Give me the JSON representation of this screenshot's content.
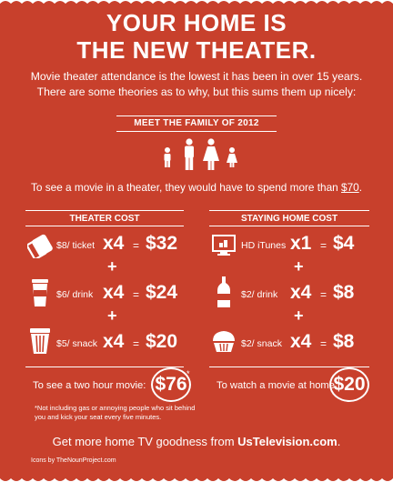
{
  "header": {
    "title_line1": "YOUR HOME IS",
    "title_line2": "THE NEW THEATER.",
    "intro": "Movie theater attendance is the lowest it has been in over 15 years. There are some theories as to why, but this sums them up nicely:"
  },
  "family": {
    "heading": "MEET THE FAMILY OF 2012",
    "spend_text": "To see a movie in a theater, they would have to spend more than ",
    "spend_amount": "$70",
    "spend_end": "."
  },
  "theater": {
    "heading": "THEATER COST",
    "rows": [
      {
        "icon": "ticket-icon",
        "unit": "$8/ ticket",
        "mult": "x4",
        "eq": "=",
        "total": "$32"
      },
      {
        "icon": "cup-icon",
        "unit": "$6/ drink",
        "mult": "x4",
        "eq": "=",
        "total": "$24"
      },
      {
        "icon": "popcorn-icon",
        "unit": "$5/ snack",
        "mult": "x4",
        "eq": "=",
        "total": "$20"
      }
    ],
    "plus": "+",
    "summary_label": "To see a two hour movie:",
    "summary_total": "$76",
    "asterisk": "*"
  },
  "home": {
    "heading": "STAYING HOME COST",
    "rows": [
      {
        "icon": "tv-icon",
        "unit": "HD iTunes",
        "mult": "x1",
        "eq": "=",
        "total": "$4"
      },
      {
        "icon": "bottle-icon",
        "unit": "$2/ drink",
        "mult": "x4",
        "eq": "=",
        "total": "$8"
      },
      {
        "icon": "cupcake-icon",
        "unit": "$2/ snack",
        "mult": "x4",
        "eq": "=",
        "total": "$8"
      }
    ],
    "plus": "+",
    "summary_label": "To watch a movie at home:",
    "summary_total": "$20"
  },
  "footnote": "*Not including gas or annoying people who sit behind you and kick your seat every five minutes.",
  "footer": {
    "text": "Get more home TV goodness from ",
    "link": "UsTelevision.com",
    "end": "."
  },
  "credit": "Icons by TheNounProject.com",
  "colors": {
    "background": "#c8402c",
    "foreground": "#ffffff"
  }
}
